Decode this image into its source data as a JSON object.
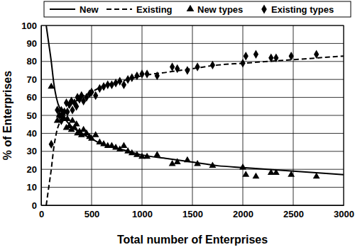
{
  "chart_data": {
    "type": "line",
    "x_label": "Total number of Enterprises",
    "y_label": "% of Enterprises",
    "xlim": [
      0,
      3000
    ],
    "xticks": [
      0,
      500,
      1000,
      1500,
      2000,
      2500,
      3000
    ],
    "ylim": [
      0,
      100
    ],
    "yticks": [
      0,
      10,
      20,
      30,
      40,
      50,
      60,
      70,
      80,
      90,
      100
    ],
    "grid": true,
    "legend": "top",
    "series": [
      {
        "name": "New",
        "type": "line",
        "line_style": "solid",
        "color": "#000000",
        "x": [
          50,
          75,
          100,
          125,
          150,
          200,
          250,
          300,
          400,
          500,
          600,
          800,
          1000,
          1250,
          1500,
          1750,
          2000,
          2250,
          2500,
          2750,
          3000
        ],
        "values": [
          100,
          90,
          80,
          68,
          60,
          52,
          47,
          44,
          40,
          37,
          34,
          31,
          28,
          26,
          24,
          22,
          21,
          20,
          19,
          18,
          17
        ]
      },
      {
        "name": "Existing",
        "type": "line",
        "line_style": "dashed",
        "color": "#000000",
        "x": [
          50,
          75,
          100,
          125,
          150,
          200,
          250,
          300,
          400,
          500,
          600,
          800,
          1000,
          1250,
          1500,
          1750,
          2000,
          2250,
          2500,
          2750,
          3000
        ],
        "values": [
          0,
          10,
          20,
          32,
          40,
          48,
          53,
          56,
          60,
          63,
          66,
          69,
          72,
          74,
          76,
          78,
          79,
          80,
          81,
          82,
          83
        ]
      },
      {
        "name": "New types",
        "type": "scatter",
        "marker": "triangle",
        "color": "#000000",
        "x": [
          100,
          160,
          180,
          200,
          210,
          230,
          250,
          260,
          280,
          300,
          310,
          330,
          350,
          360,
          380,
          400,
          420,
          450,
          480,
          500,
          540,
          580,
          620,
          660,
          700,
          740,
          780,
          820,
          860,
          900,
          950,
          1000,
          1050,
          1150,
          1300,
          1350,
          1450,
          1550,
          1700,
          2000,
          2030,
          2130,
          2280,
          2330,
          2480,
          2730
        ],
        "values": [
          66,
          47,
          50,
          53,
          51,
          48,
          43,
          48,
          44,
          42,
          47,
          43,
          45,
          40,
          41,
          39,
          42,
          40,
          38,
          37,
          39,
          35,
          34,
          33,
          33,
          32,
          31,
          33,
          30,
          29,
          28,
          27,
          27,
          28,
          23,
          24,
          25,
          23,
          22,
          21,
          17,
          16,
          18,
          18,
          17,
          16
        ]
      },
      {
        "name": "Existing types",
        "type": "scatter",
        "marker": "diamond",
        "color": "#000000",
        "x": [
          100,
          160,
          180,
          200,
          210,
          230,
          250,
          260,
          280,
          300,
          310,
          330,
          350,
          360,
          380,
          400,
          420,
          450,
          480,
          500,
          540,
          580,
          620,
          660,
          700,
          740,
          780,
          820,
          860,
          900,
          950,
          1000,
          1050,
          1150,
          1300,
          1350,
          1450,
          1550,
          1700,
          2000,
          2030,
          2130,
          2280,
          2330,
          2480,
          2730
        ],
        "values": [
          34,
          53,
          50,
          47,
          49,
          52,
          57,
          52,
          56,
          58,
          53,
          57,
          55,
          60,
          59,
          61,
          58,
          60,
          62,
          63,
          61,
          65,
          66,
          67,
          67,
          68,
          69,
          67,
          70,
          71,
          72,
          73,
          73,
          72,
          77,
          76,
          75,
          77,
          78,
          79,
          83,
          84,
          82,
          82,
          83,
          84
        ]
      }
    ]
  }
}
